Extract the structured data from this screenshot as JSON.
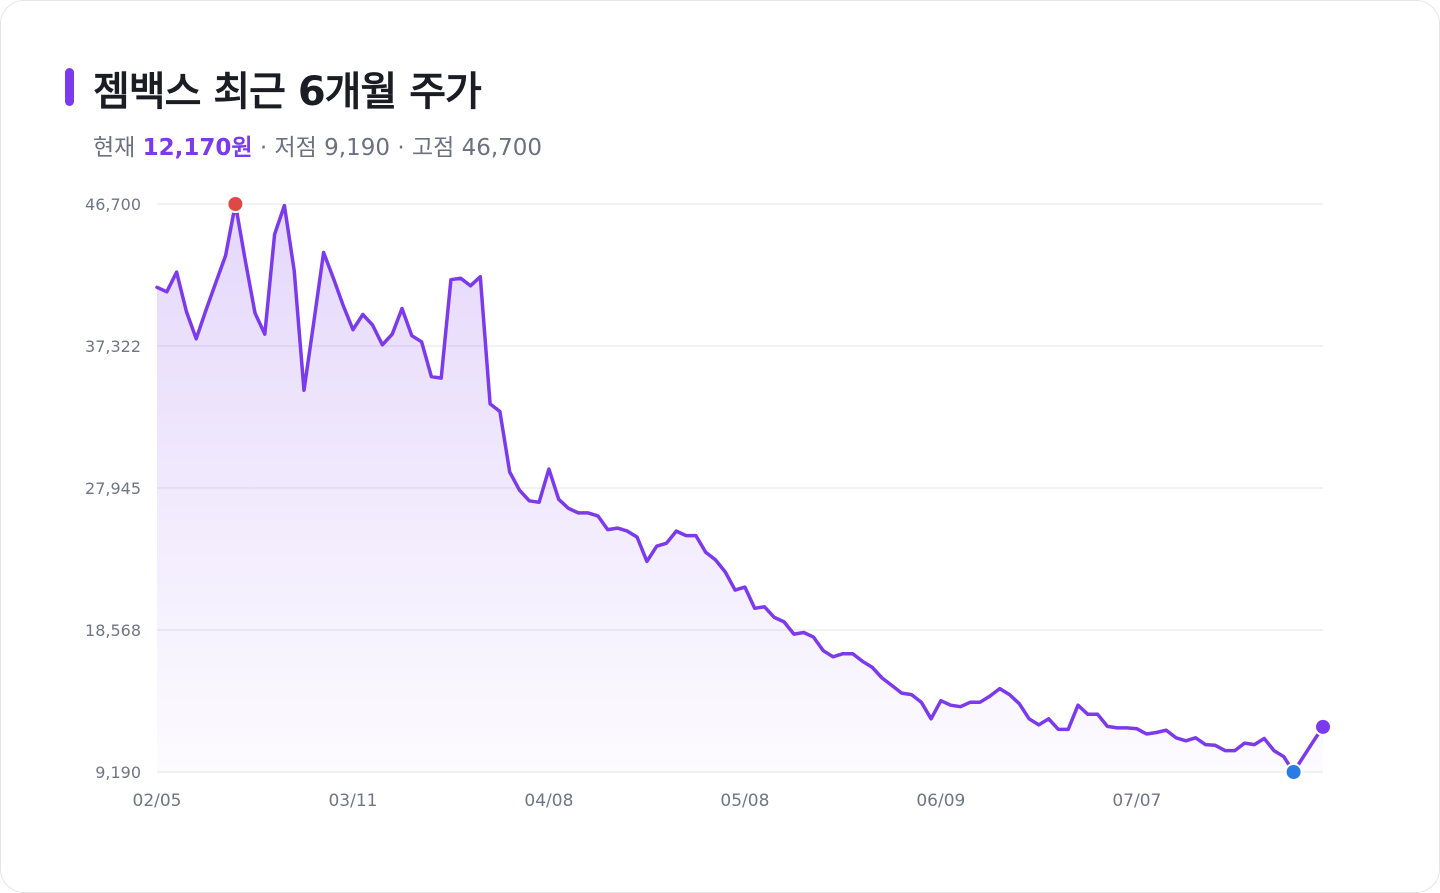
{
  "header": {
    "title": "젬백스 최근 6개월 주가",
    "current_label": "현재",
    "current_value": "12,170원",
    "sep": "·",
    "low_label": "저점",
    "low_value": "9,190",
    "high_label": "고점",
    "high_value": "46,700"
  },
  "colors": {
    "accent": "#7c3aed",
    "line": "#7c3aed",
    "high_marker": "#e04848",
    "low_marker": "#2b7be4",
    "grid": "#e4e4ea"
  },
  "chart_data": {
    "type": "line",
    "title": "젬백스 최근 6개월 주가",
    "xlabel": "",
    "ylabel": "",
    "ylim": [
      9190,
      46700
    ],
    "yticks": [
      "46,700",
      "37,322",
      "27,945",
      "18,568",
      "9,190"
    ],
    "ytick_values": [
      46700,
      37322,
      27945,
      18568,
      9190
    ],
    "xticks": [
      {
        "label": "02/05",
        "index": 0
      },
      {
        "label": "03/11",
        "index": 20
      },
      {
        "label": "04/08",
        "index": 40
      },
      {
        "label": "05/08",
        "index": 60
      },
      {
        "label": "06/09",
        "index": 80
      },
      {
        "label": "07/07",
        "index": 100
      }
    ],
    "grid": true,
    "legend": "none",
    "markers": {
      "high_index": 8,
      "low_index": 116,
      "last_index": 119
    },
    "values": [
      41200,
      40900,
      42200,
      39600,
      37800,
      39700,
      41500,
      43300,
      46700,
      43000,
      39500,
      38100,
      44700,
      46600,
      42300,
      34400,
      38900,
      43500,
      41800,
      40000,
      38400,
      39400,
      38700,
      37400,
      38100,
      39800,
      38000,
      37600,
      35300,
      35200,
      41700,
      41800,
      41300,
      41900,
      33500,
      33000,
      29000,
      27800,
      27100,
      27000,
      29200,
      27200,
      26600,
      26300,
      26300,
      26100,
      25200,
      25300,
      25100,
      24700,
      23100,
      24100,
      24300,
      25100,
      24800,
      24800,
      23700,
      23200,
      22400,
      21200,
      21400,
      20000,
      20100,
      19400,
      19100,
      18300,
      18400,
      18100,
      17200,
      16800,
      17000,
      17000,
      16500,
      16100,
      15400,
      14900,
      14400,
      14300,
      13800,
      12700,
      13900,
      13600,
      13500,
      13800,
      13800,
      14200,
      14700,
      14300,
      13700,
      12700,
      12300,
      12700,
      12000,
      12000,
      13600,
      13000,
      13000,
      12200,
      12100,
      12100,
      12050,
      11700,
      11800,
      11950,
      11450,
      11250,
      11450,
      11000,
      10950,
      10600,
      10600,
      11100,
      11000,
      11400,
      10600,
      10200,
      9190,
      10200,
      11200,
      12170
    ]
  }
}
